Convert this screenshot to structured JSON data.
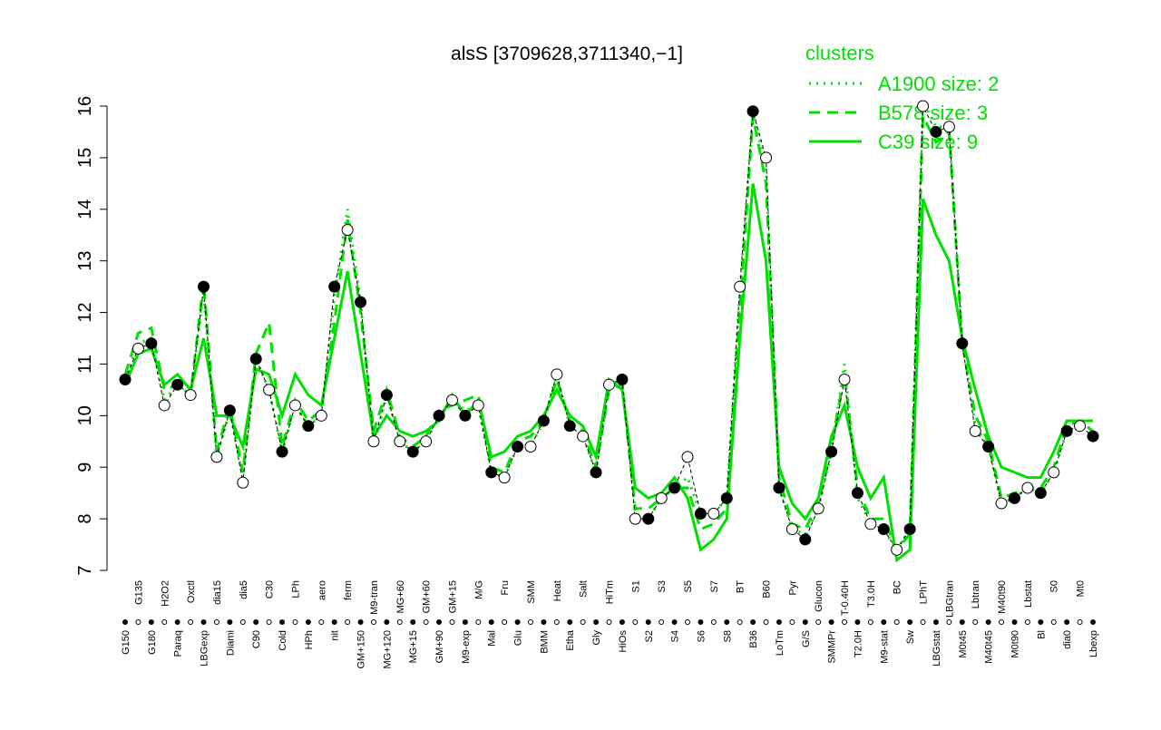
{
  "chart_data": {
    "type": "line",
    "title": "alsS [3709628,3711340,−1]",
    "legend_title": "clusters",
    "legend_position": "top-right",
    "ylim": [
      7,
      16
    ],
    "yticks": [
      7,
      8,
      9,
      10,
      11,
      12,
      13,
      14,
      15,
      16
    ],
    "categories": [
      "G150",
      "G135",
      "G180",
      "H2O2",
      "Paraq",
      "Oxctl",
      "LBGexp",
      "dia15",
      "Diami",
      "dia5",
      "C90",
      "C30",
      "Cold",
      "LPh",
      "HPh",
      "aero",
      "nit",
      "ferm",
      "GM+150",
      "M9-tran",
      "MG+120",
      "MG+60",
      "MG+15",
      "GM+60",
      "GM+90",
      "GM+15",
      "M9-exp",
      "M/G",
      "Mal",
      "Fru",
      "Glu",
      "SMM",
      "BMM",
      "Heat",
      "Etha",
      "Salt",
      "Gly",
      "HiTm",
      "HiOs",
      "S1",
      "S2",
      "S3",
      "S4",
      "S5",
      "S6",
      "S7",
      "S8",
      "BT",
      "B36",
      "B60",
      "LoTm",
      "Pyr",
      "G/S",
      "Glucon",
      "SMMPr",
      "T-0.40H",
      "T2.0H",
      "T3.0H",
      "M9-stat",
      "BC",
      "Sw",
      "LPhT",
      "LBGstat",
      "LBGtran",
      "M0t45",
      "Lbtran",
      "M40t45",
      "M40t90",
      "M0t90",
      "Lbstat",
      "Bl",
      "S0",
      "dia0",
      "Mt0",
      "Lbexp"
    ],
    "values": [
      10.7,
      11.3,
      11.4,
      10.2,
      10.6,
      10.4,
      12.5,
      9.2,
      10.1,
      8.7,
      11.1,
      10.5,
      9.3,
      10.2,
      9.8,
      10.0,
      12.5,
      13.6,
      12.2,
      9.5,
      10.4,
      9.5,
      9.3,
      9.5,
      10.0,
      10.3,
      10.0,
      10.2,
      8.9,
      8.8,
      9.4,
      9.4,
      9.9,
      10.8,
      9.8,
      9.6,
      8.9,
      10.6,
      10.7,
      8.0,
      8.0,
      8.4,
      8.6,
      9.2,
      8.1,
      8.1,
      8.4,
      12.5,
      15.9,
      15.0,
      8.6,
      7.8,
      7.6,
      8.2,
      9.3,
      10.7,
      8.5,
      7.9,
      7.8,
      7.4,
      7.8,
      16.0,
      15.5,
      15.6,
      11.4,
      9.7,
      9.4,
      8.3,
      8.4,
      8.6,
      8.5,
      8.9,
      9.7,
      9.8,
      9.6
    ],
    "point_color": "#000000",
    "series": [
      {
        "name": "A1900 size: 2",
        "color": "#00e000",
        "style": "dotted",
        "values": [
          10.7,
          11.4,
          11.5,
          10.3,
          10.6,
          10.4,
          12.4,
          9.2,
          10.1,
          8.8,
          11.1,
          10.5,
          9.3,
          10.2,
          9.8,
          10.0,
          12.3,
          14.0,
          12.2,
          9.4,
          10.4,
          9.5,
          9.3,
          9.5,
          10.0,
          10.3,
          10.1,
          10.2,
          8.9,
          8.8,
          9.4,
          9.4,
          9.9,
          10.8,
          9.8,
          9.6,
          8.9,
          10.6,
          10.7,
          8.1,
          8.0,
          8.4,
          8.6,
          8.8,
          8.1,
          8.1,
          8.4,
          12.4,
          15.9,
          14.8,
          8.6,
          7.8,
          7.7,
          8.2,
          9.3,
          11.0,
          8.4,
          7.9,
          7.8,
          7.4,
          7.8,
          16.1,
          15.6,
          15.6,
          11.5,
          9.8,
          9.4,
          8.3,
          8.4,
          8.6,
          8.5,
          8.9,
          9.7,
          9.8,
          9.6
        ]
      },
      {
        "name": "B578 size: 3",
        "color": "#00e000",
        "style": "dashed",
        "values": [
          10.8,
          11.6,
          11.7,
          10.5,
          10.6,
          10.4,
          12.6,
          9.3,
          10.2,
          8.9,
          11.2,
          11.8,
          9.4,
          10.3,
          9.9,
          10.1,
          11.8,
          13.8,
          12.0,
          9.7,
          10.5,
          9.6,
          9.4,
          9.6,
          10.1,
          10.2,
          10.3,
          10.4,
          9.0,
          8.9,
          9.5,
          9.6,
          9.9,
          10.7,
          9.9,
          9.7,
          9.0,
          10.5,
          10.6,
          8.2,
          8.2,
          8.4,
          8.6,
          8.6,
          7.8,
          7.9,
          8.2,
          12.0,
          15.8,
          14.5,
          8.8,
          7.9,
          7.8,
          8.3,
          9.4,
          10.8,
          8.6,
          8.0,
          8.0,
          7.4,
          7.7,
          15.8,
          15.3,
          15.5,
          11.4,
          10.0,
          9.5,
          8.4,
          8.5,
          8.6,
          8.6,
          9.0,
          9.8,
          9.9,
          9.7
        ]
      },
      {
        "name": "C39 size: 9",
        "color": "#00e000",
        "style": "solid",
        "values": [
          10.6,
          11.2,
          11.3,
          10.6,
          10.8,
          10.5,
          11.5,
          10.0,
          10.0,
          9.4,
          10.9,
          10.8,
          10.0,
          10.8,
          10.4,
          10.2,
          11.5,
          12.8,
          11.2,
          9.6,
          10.0,
          9.7,
          9.6,
          9.7,
          9.9,
          10.4,
          10.0,
          10.3,
          9.2,
          9.3,
          9.6,
          9.7,
          10.0,
          10.5,
          10.0,
          9.8,
          9.2,
          10.7,
          10.5,
          8.6,
          8.4,
          8.5,
          8.8,
          8.4,
          7.4,
          7.6,
          8.0,
          11.5,
          14.5,
          13.0,
          9.0,
          8.3,
          8.0,
          8.4,
          9.6,
          10.2,
          9.0,
          8.4,
          8.8,
          7.2,
          7.4,
          14.2,
          13.5,
          13.0,
          11.5,
          10.5,
          9.6,
          9.0,
          8.9,
          8.8,
          8.8,
          9.3,
          9.9,
          9.9,
          9.9
        ]
      }
    ]
  }
}
